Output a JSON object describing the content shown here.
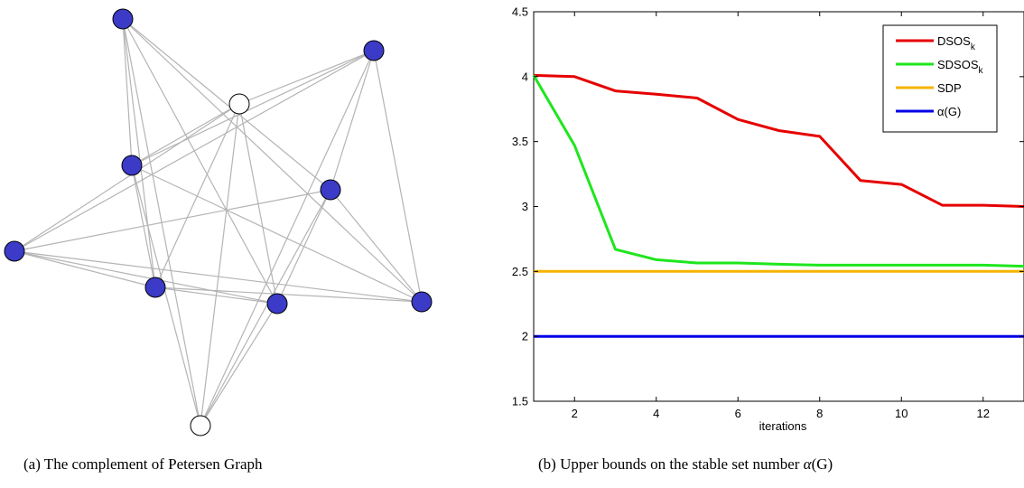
{
  "chart_data": [
    {
      "type": "network",
      "caption": "(a)  The complement of Petersen Graph",
      "node_fill_colors": {
        "filled": "#3b3bc8",
        "empty": "#ffffff"
      },
      "edge_color": "#b4b4b4",
      "nodes": [
        {
          "id": "n1",
          "fill": "filled"
        },
        {
          "id": "n2",
          "fill": "filled"
        },
        {
          "id": "n3",
          "fill": "empty"
        },
        {
          "id": "n4",
          "fill": "filled"
        },
        {
          "id": "n5",
          "fill": "filled"
        },
        {
          "id": "n6",
          "fill": "filled"
        },
        {
          "id": "n7",
          "fill": "filled"
        },
        {
          "id": "n8",
          "fill": "filled"
        },
        {
          "id": "n9",
          "fill": "filled"
        },
        {
          "id": "n10",
          "fill": "empty"
        }
      ]
    },
    {
      "type": "line",
      "caption_prefix": "(b)  Upper bounds on the stable set number",
      "caption_math_symbol": "α",
      "caption_math_arg": "(G)",
      "xlabel": "iterations",
      "ylabel": "",
      "xlim": [
        1,
        13
      ],
      "ylim": [
        1.5,
        4.5
      ],
      "xticks": [
        2,
        4,
        6,
        8,
        10,
        12
      ],
      "yticks": [
        1.5,
        2,
        2.5,
        3,
        3.5,
        4,
        4.5
      ],
      "ytick_labels": [
        "1.5",
        "2",
        "2.5",
        "3",
        "3.5",
        "4",
        "4.5"
      ],
      "legend_position": "top-right",
      "grid": false,
      "x": [
        1,
        2,
        3,
        4,
        5,
        6,
        7,
        8,
        9,
        10,
        11,
        12,
        13
      ],
      "series": [
        {
          "name": "DSOS",
          "subscript": "k",
          "color": "#e60000",
          "values": [
            4.01,
            4.0,
            3.89,
            3.865,
            3.835,
            3.67,
            3.585,
            3.54,
            3.2,
            3.17,
            3.01,
            3.01,
            3.0
          ]
        },
        {
          "name": "SDSOS",
          "subscript": "k",
          "color": "#1ee61e",
          "values": [
            4.01,
            3.47,
            2.67,
            2.59,
            2.565,
            2.565,
            2.555,
            2.548,
            2.548,
            2.548,
            2.548,
            2.548,
            2.54
          ]
        },
        {
          "name": "SDP",
          "subscript": "",
          "color": "#f5b400",
          "values": [
            2.5,
            2.5,
            2.5,
            2.5,
            2.5,
            2.5,
            2.5,
            2.5,
            2.5,
            2.5,
            2.5,
            2.5,
            2.5
          ]
        },
        {
          "name": "α(G)",
          "subscript": "",
          "color": "#0000e6",
          "values": [
            2.0,
            2.0,
            2.0,
            2.0,
            2.0,
            2.0,
            2.0,
            2.0,
            2.0,
            2.0,
            2.0,
            2.0,
            2.0
          ]
        }
      ]
    }
  ]
}
